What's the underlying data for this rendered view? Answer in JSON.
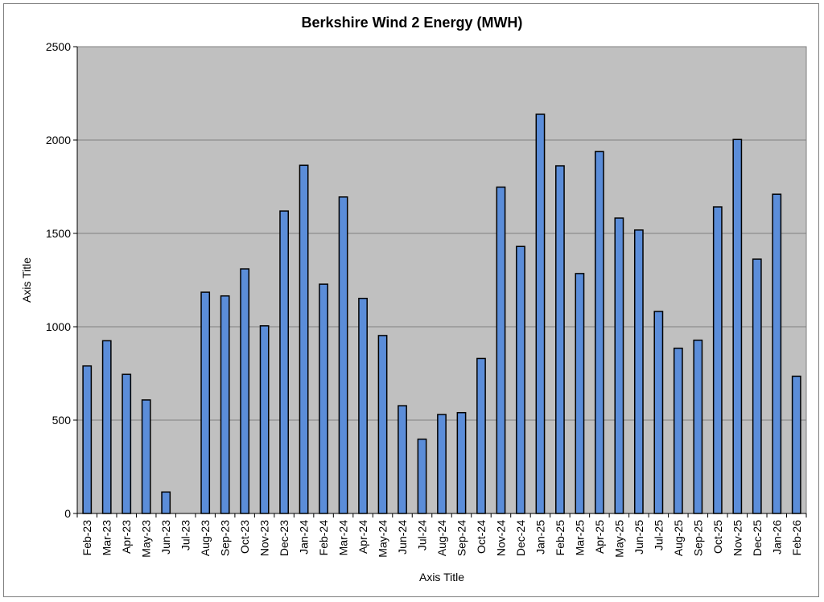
{
  "chart_data": {
    "type": "bar",
    "title": "Berkshire Wind 2 Energy (MWH)",
    "xlabel": "Axis Title",
    "ylabel": "Axis Title",
    "ylim": [
      0,
      2500
    ],
    "yticks": [
      0,
      500,
      1000,
      1500,
      2000,
      2500
    ],
    "grid": true,
    "colors": {
      "bar": "#5b8dd9",
      "bar_stroke": "#000000",
      "plot_bg": "#c0c0c0",
      "grid": "#808080"
    },
    "categories": [
      "Feb-23",
      "Mar-23",
      "Apr-23",
      "May-23",
      "Jun-23",
      "Jul-23",
      "Aug-23",
      "Sep-23",
      "Oct-23",
      "Nov-23",
      "Dec-23",
      "Jan-24",
      "Feb-24",
      "Mar-24",
      "Apr-24",
      "May-24",
      "Jun-24",
      "Jul-24",
      "Aug-24",
      "Sep-24",
      "Oct-24",
      "Nov-24",
      "Dec-24",
      "Jan-25",
      "Feb-25",
      "Mar-25",
      "Apr-25",
      "May-25",
      "Jun-25",
      "Jul-25",
      "Aug-25",
      "Sep-25",
      "Oct-25",
      "Nov-25",
      "Dec-25",
      "Jan-26",
      "Feb-26"
    ],
    "values": [
      790,
      925,
      745,
      608,
      115,
      0,
      1185,
      1165,
      1310,
      1005,
      1620,
      1865,
      1228,
      1695,
      1152,
      953,
      577,
      398,
      530,
      540,
      830,
      1748,
      1430,
      2138,
      1862,
      1285,
      1938,
      1582,
      1518,
      1082,
      885,
      928,
      1642,
      2003,
      1362,
      1710,
      735
    ]
  }
}
